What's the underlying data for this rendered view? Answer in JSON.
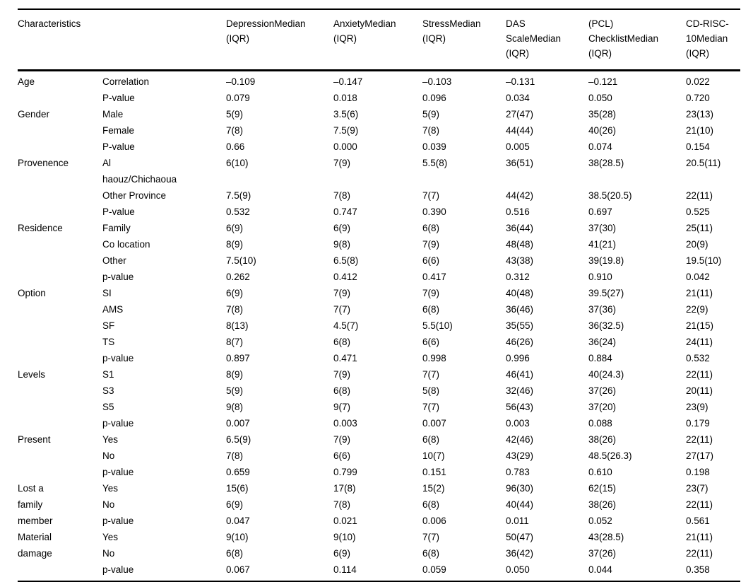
{
  "table": {
    "header": {
      "characteristics": "Characteristics",
      "columns": [
        "DepressionMedian\n(IQR)",
        "AnxietyMedian\n(IQR)",
        "StressMedian\n(IQR)",
        "DAS\nScaleMedian\n(IQR)",
        "(PCL)\nChecklistMedian\n(IQR)",
        "CD-RISC-\n10Median\n(IQR)"
      ]
    },
    "groups": [
      {
        "category": "Age",
        "rows": [
          {
            "label": "Correlation",
            "values": [
              "–0.109",
              "–0.147",
              "–0.103",
              "–0.131",
              "–0.121",
              "0.022"
            ]
          },
          {
            "label": "P-value",
            "values": [
              "0.079",
              "0.018",
              "0.096",
              "0.034",
              "0.050",
              "0.720"
            ]
          }
        ]
      },
      {
        "category": "Gender",
        "rows": [
          {
            "label": "Male",
            "values": [
              "5(9)",
              "3.5(6)",
              "5(9)",
              "27(47)",
              "35(28)",
              "23(13)"
            ]
          },
          {
            "label": "Female",
            "values": [
              "7(8)",
              "7.5(9)",
              "7(8)",
              "44(44)",
              "40(26)",
              "21(10)"
            ]
          },
          {
            "label": "P-value",
            "values": [
              "0.66",
              "0.000",
              "0.039",
              "0.005",
              "0.074",
              "0.154"
            ]
          }
        ]
      },
      {
        "category": "Provenence",
        "rows": [
          {
            "label": "Al\nhaouz/Chichaoua",
            "values": [
              "6(10)",
              "7(9)",
              "5.5(8)",
              "36(51)",
              "38(28.5)",
              "20.5(11)"
            ]
          },
          {
            "label": "Other Province",
            "values": [
              "7.5(9)",
              "7(8)",
              "7(7)",
              "44(42)",
              "38.5(20.5)",
              "22(11)"
            ]
          },
          {
            "label": "P-value",
            "values": [
              "0.532",
              "0.747",
              "0.390",
              "0.516",
              "0.697",
              "0.525"
            ]
          }
        ]
      },
      {
        "category": "Residence",
        "rows": [
          {
            "label": "Family",
            "values": [
              "6(9)",
              "6(9)",
              "6(8)",
              "36(44)",
              "37(30)",
              "25(11)"
            ]
          },
          {
            "label": "Co location",
            "values": [
              "8(9)",
              "9(8)",
              "7(9)",
              "48(48)",
              "41(21)",
              "20(9)"
            ]
          },
          {
            "label": "Other",
            "values": [
              "7.5(10)",
              "6.5(8)",
              "6(6)",
              "43(38)",
              "39(19.8)",
              "19.5(10)"
            ]
          },
          {
            "label": "p-value",
            "values": [
              "0.262",
              "0.412",
              "0.417",
              "0.312",
              "0.910",
              "0.042"
            ]
          }
        ]
      },
      {
        "category": "Option",
        "rows": [
          {
            "label": "SI",
            "values": [
              "6(9)",
              "7(9)",
              "7(9)",
              "40(48)",
              "39.5(27)",
              "21(11)"
            ]
          },
          {
            "label": "AMS",
            "values": [
              "7(8)",
              "7(7)",
              "6(8)",
              "36(46)",
              "37(36)",
              "22(9)"
            ]
          },
          {
            "label": "SF",
            "values": [
              "8(13)",
              "4.5(7)",
              "5.5(10)",
              "35(55)",
              "36(32.5)",
              "21(15)"
            ]
          },
          {
            "label": "TS",
            "values": [
              "8(7)",
              "6(8)",
              "6(6)",
              "46(26)",
              "36(24)",
              "24(11)"
            ]
          },
          {
            "label": "p-value",
            "values": [
              "0.897",
              "0.471",
              "0.998",
              "0.996",
              "0.884",
              "0.532"
            ]
          }
        ]
      },
      {
        "category": "Levels",
        "rows": [
          {
            "label": "S1",
            "values": [
              "8(9)",
              "7(9)",
              "7(7)",
              "46(41)",
              "40(24.3)",
              "22(11)"
            ]
          },
          {
            "label": "S3",
            "values": [
              "5(9)",
              "6(8)",
              "5(8)",
              "32(46)",
              "37(26)",
              "20(11)"
            ]
          },
          {
            "label": "S5",
            "values": [
              "9(8)",
              "9(7)",
              "7(7)",
              "56(43)",
              "37(20)",
              "23(9)"
            ]
          },
          {
            "label": "p-value",
            "values": [
              "0.007",
              "0.003",
              "0.007",
              "0.003",
              "0.088",
              "0.179"
            ]
          }
        ]
      },
      {
        "category": "Present",
        "rows": [
          {
            "label": "Yes",
            "values": [
              "6.5(9)",
              "7(9)",
              "6(8)",
              "42(46)",
              "38(26)",
              "22(11)"
            ]
          },
          {
            "label": "No",
            "values": [
              "7(8)",
              "6(6)",
              "10(7)",
              "43(29)",
              "48.5(26.3)",
              "27(17)"
            ]
          },
          {
            "label": "p-value",
            "values": [
              "0.659",
              "0.799",
              "0.151",
              "0.783",
              "0.610",
              "0.198"
            ]
          }
        ]
      },
      {
        "category": "Lost a\nfamily\nmember",
        "rows": [
          {
            "label": "Yes",
            "values": [
              "15(6)",
              "17(8)",
              "15(2)",
              "96(30)",
              "62(15)",
              "23(7)"
            ]
          },
          {
            "label": "No",
            "values": [
              "6(9)",
              "7(8)",
              "6(8)",
              "40(44)",
              "38(26)",
              "22(11)"
            ]
          },
          {
            "label": "p-value",
            "values": [
              "0.047",
              "0.021",
              "0.006",
              "0.011",
              "0.052",
              "0.561"
            ]
          }
        ]
      },
      {
        "category": "Material\ndamage",
        "rows": [
          {
            "label": "Yes",
            "values": [
              "9(10)",
              "9(10)",
              "7(7)",
              "50(47)",
              "43(28.5)",
              "21(11)"
            ]
          },
          {
            "label": "No",
            "values": [
              "6(8)",
              "6(9)",
              "6(8)",
              "36(42)",
              "37(26)",
              "22(11)"
            ]
          },
          {
            "label": "p-value",
            "values": [
              "0.067",
              "0.114",
              "0.059",
              "0.050",
              "0.044",
              "0.358"
            ]
          }
        ]
      }
    ]
  }
}
